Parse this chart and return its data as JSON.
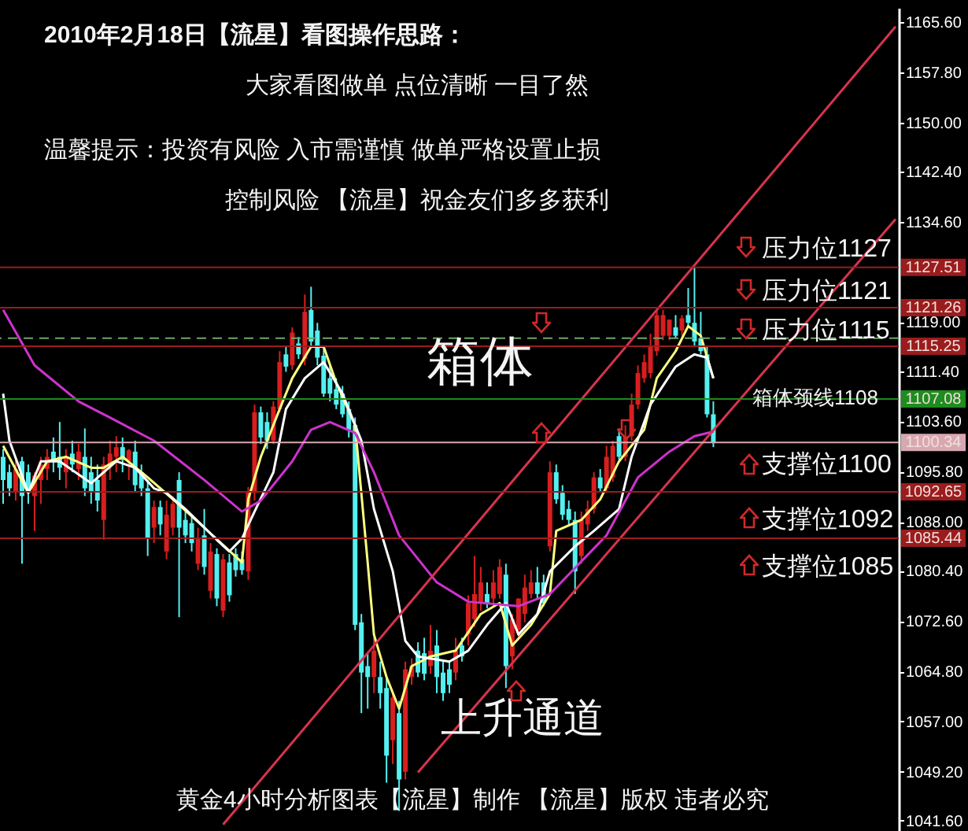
{
  "chart_data": {
    "type": "candlestick",
    "title": "2010年2月18日【流星】看图操作思路：",
    "subtitle": "大家看图做单 点位清晰 一目了然",
    "annotations": [
      "温馨提示：投资有风险 入市需谨慎 做单严格设置止损",
      "控制风险 【流星】祝金友们多多获利",
      "压力位1127",
      "压力位1121",
      "压力位1115",
      "箱体颈线1108",
      "支撑位1100",
      "支撑位1092",
      "支撑位1085",
      "箱体",
      "上升通道",
      "黄金4小时分析图表【流星】制作 【流星】版权 违者必究"
    ],
    "categories": [
      null,
      null,
      null,
      null,
      null,
      null,
      null,
      null,
      null,
      null,
      null,
      null,
      null,
      null,
      null,
      null,
      null,
      null,
      null,
      null,
      null,
      null,
      null,
      null,
      null,
      null,
      null,
      null,
      null,
      null,
      null,
      null,
      null,
      null,
      null,
      null,
      null,
      null,
      null,
      null,
      null,
      null,
      null,
      null,
      null,
      null,
      null,
      null,
      null,
      null,
      null,
      null,
      null,
      null,
      null,
      null,
      null,
      null,
      null,
      null,
      null,
      null,
      null,
      null,
      null,
      null,
      null,
      null,
      null,
      null,
      null,
      null,
      null,
      null,
      null,
      null,
      null,
      null,
      null,
      null,
      null,
      null,
      null,
      null,
      null,
      null,
      null,
      null,
      null,
      null,
      null,
      null,
      null,
      null,
      null,
      null,
      null,
      null,
      null,
      null,
      null,
      null,
      null,
      null,
      null,
      null,
      null,
      null,
      null,
      null,
      null,
      null,
      null,
      null,
      null,
      null,
      null,
      null,
      null,
      null,
      null,
      null,
      null,
      null,
      null,
      null,
      null,
      null,
      null,
      null,
      null,
      null,
      null,
      null,
      null,
      null,
      null,
      null,
      null,
      null,
      null,
      null,
      null
    ],
    "ohlc": [
      [
        1098.1,
        1099.3,
        1090.8,
        1094.5
      ],
      [
        1095.7,
        1096.9,
        1092.0,
        1093.2
      ],
      [
        1092.7,
        1097.6,
        1091.3,
        1096.2
      ],
      [
        1097.4,
        1098.1,
        1081.5,
        1092.0
      ],
      [
        1095.7,
        1096.9,
        1090.8,
        1092.7
      ],
      [
        1092.0,
        1095.7,
        1086.6,
        1095.2
      ],
      [
        1094.5,
        1098.1,
        1090.8,
        1096.9
      ],
      [
        1096.2,
        1099.3,
        1094.5,
        1098.1
      ],
      [
        1098.9,
        1101.1,
        1095.7,
        1097.4
      ],
      [
        1098.1,
        1103.5,
        1094.5,
        1096.4
      ],
      [
        1095.7,
        1099.3,
        1093.2,
        1098.1
      ],
      [
        1098.6,
        1100.6,
        1095.7,
        1096.9
      ],
      [
        1096.2,
        1100.1,
        1094.5,
        1098.9
      ],
      [
        1098.1,
        1102.5,
        1092.0,
        1093.2
      ],
      [
        1095.7,
        1098.1,
        1090.8,
        1092.7
      ],
      [
        1094.5,
        1096.9,
        1089.6,
        1091.3
      ],
      [
        1088.3,
        1098.1,
        1085.2,
        1096.9
      ],
      [
        1096.9,
        1100.6,
        1094.5,
        1098.6
      ],
      [
        1098.1,
        1101.3,
        1095.7,
        1099.6
      ],
      [
        1099.6,
        1101.1,
        1095.7,
        1097.6
      ],
      [
        1097.4,
        1099.3,
        1094.5,
        1099.1
      ],
      [
        1098.9,
        1100.6,
        1092.7,
        1093.7
      ],
      [
        1095.7,
        1096.9,
        1092.0,
        1093.2
      ],
      [
        1093.2,
        1094.5,
        1082.7,
        1085.4
      ],
      [
        1087.1,
        1091.3,
        1084.7,
        1090.3
      ],
      [
        1090.3,
        1091.3,
        1085.9,
        1087.6
      ],
      [
        1083.4,
        1091.3,
        1082.2,
        1089.1
      ],
      [
        1087.1,
        1092.0,
        1085.9,
        1090.8
      ],
      [
        1094.5,
        1095.7,
        1073.2,
        1087.1
      ],
      [
        1088.3,
        1089.6,
        1084.7,
        1085.9
      ],
      [
        1087.8,
        1088.8,
        1083.4,
        1084.7
      ],
      [
        1081.5,
        1087.1,
        1080.5,
        1085.4
      ],
      [
        1085.9,
        1090.0,
        1079.8,
        1081.0
      ],
      [
        1077.3,
        1084.7,
        1076.1,
        1083.4
      ],
      [
        1083.0,
        1083.9,
        1074.9,
        1076.1
      ],
      [
        1074.2,
        1083.0,
        1073.2,
        1082.2
      ],
      [
        1081.7,
        1083.0,
        1075.6,
        1076.6
      ],
      [
        1083.0,
        1083.9,
        1079.5,
        1080.5
      ],
      [
        1082.2,
        1083.4,
        1079.8,
        1080.5
      ],
      [
        1080.3,
        1093.4,
        1079.0,
        1092.7
      ],
      [
        1092.5,
        1106.2,
        1091.3,
        1105.0
      ],
      [
        1105.0,
        1105.9,
        1100.1,
        1101.1
      ],
      [
        1103.5,
        1105.0,
        1099.3,
        1100.6
      ],
      [
        1100.6,
        1106.7,
        1100.1,
        1105.9
      ],
      [
        1105.5,
        1114.5,
        1105.0,
        1112.8
      ],
      [
        1114.0,
        1115.2,
        1111.3,
        1112.1
      ],
      [
        1112.3,
        1118.2,
        1111.6,
        1117.4
      ],
      [
        1115.7,
        1116.7,
        1113.3,
        1114.0
      ],
      [
        1113.3,
        1123.3,
        1112.3,
        1120.6
      ],
      [
        1120.9,
        1124.5,
        1115.2,
        1116.0
      ],
      [
        1117.7,
        1118.9,
        1112.3,
        1113.5
      ],
      [
        1113.8,
        1115.2,
        1107.4,
        1107.9
      ],
      [
        1110.3,
        1112.3,
        1106.7,
        1107.9
      ],
      [
        1108.6,
        1110.3,
        1105.5,
        1106.2
      ],
      [
        1107.9,
        1109.1,
        1104.2,
        1104.7
      ],
      [
        1105.5,
        1106.7,
        1101.1,
        1102.3
      ],
      [
        1103.0,
        1104.2,
        1071.2,
        1072.0
      ],
      [
        1072.4,
        1073.7,
        1058.3,
        1064.6
      ],
      [
        1065.6,
        1067.6,
        1059.0,
        1063.9
      ],
      [
        1063.9,
        1070.0,
        1061.4,
        1068.0
      ],
      [
        1063.9,
        1066.3,
        1059.0,
        1061.4
      ],
      [
        1062.2,
        1063.9,
        1047.5,
        1051.7
      ],
      [
        1054.1,
        1061.4,
        1050.4,
        1060.7
      ],
      [
        1058.3,
        1060.2,
        1043.1,
        1048.0
      ],
      [
        1049.2,
        1066.3,
        1048.0,
        1065.1
      ],
      [
        1063.9,
        1066.8,
        1062.7,
        1065.6
      ],
      [
        1068.0,
        1069.3,
        1063.9,
        1064.6
      ],
      [
        1067.6,
        1070.0,
        1063.4,
        1064.4
      ],
      [
        1065.6,
        1072.0,
        1064.4,
        1068.0
      ],
      [
        1068.8,
        1071.2,
        1061.4,
        1063.9
      ],
      [
        1064.6,
        1066.3,
        1060.2,
        1061.4
      ],
      [
        1065.1,
        1066.3,
        1061.4,
        1062.7
      ],
      [
        1064.6,
        1070.0,
        1063.4,
        1068.0
      ],
      [
        1068.8,
        1070.0,
        1066.3,
        1067.1
      ],
      [
        1070.5,
        1076.6,
        1068.8,
        1075.4
      ],
      [
        1072.9,
        1082.7,
        1071.7,
        1076.8
      ],
      [
        1075.4,
        1081.0,
        1074.2,
        1078.6
      ],
      [
        1076.8,
        1078.6,
        1074.6,
        1075.4
      ],
      [
        1076.1,
        1080.5,
        1075.1,
        1078.6
      ],
      [
        1076.8,
        1082.2,
        1076.1,
        1081.0
      ],
      [
        1079.8,
        1081.5,
        1062.2,
        1065.6
      ],
      [
        1067.1,
        1073.7,
        1065.1,
        1072.9
      ],
      [
        1071.2,
        1076.1,
        1070.0,
        1076.1
      ],
      [
        1073.7,
        1079.8,
        1072.4,
        1077.8
      ],
      [
        1076.8,
        1080.5,
        1076.1,
        1078.6
      ],
      [
        1078.6,
        1081.0,
        1076.1,
        1076.8
      ],
      [
        1078.6,
        1079.8,
        1074.9,
        1075.4
      ],
      [
        1084.2,
        1097.4,
        1083.4,
        1095.7
      ],
      [
        1095.7,
        1096.9,
        1090.8,
        1091.5
      ],
      [
        1092.5,
        1093.7,
        1088.3,
        1089.1
      ],
      [
        1090.0,
        1091.3,
        1087.6,
        1088.3
      ],
      [
        1088.3,
        1089.6,
        1076.8,
        1080.3
      ],
      [
        1082.7,
        1089.6,
        1081.5,
        1088.3
      ],
      [
        1087.6,
        1091.3,
        1086.6,
        1090.0
      ],
      [
        1090.0,
        1095.7,
        1089.3,
        1094.9
      ],
      [
        1094.9,
        1096.2,
        1092.7,
        1093.2
      ],
      [
        1093.2,
        1099.8,
        1092.5,
        1098.1
      ],
      [
        1094.9,
        1100.6,
        1094.2,
        1099.8
      ],
      [
        1101.3,
        1102.5,
        1097.6,
        1098.1
      ],
      [
        1098.1,
        1103.0,
        1097.4,
        1101.3
      ],
      [
        1101.3,
        1107.9,
        1100.6,
        1106.2
      ],
      [
        1106.2,
        1112.3,
        1105.5,
        1111.1
      ],
      [
        1110.3,
        1114.0,
        1109.6,
        1112.8
      ],
      [
        1111.1,
        1117.2,
        1110.3,
        1115.2
      ],
      [
        1114.5,
        1120.9,
        1113.8,
        1120.1
      ],
      [
        1116.9,
        1120.9,
        1116.2,
        1120.1
      ],
      [
        1116.9,
        1119.4,
        1116.2,
        1119.4
      ],
      [
        1118.2,
        1120.1,
        1116.5,
        1116.9
      ],
      [
        1117.7,
        1120.1,
        1116.9,
        1119.6
      ],
      [
        1120.1,
        1124.3,
        1118.4,
        1118.9
      ],
      [
        1118.9,
        1127.5,
        1115.2,
        1116.0
      ],
      [
        1116.5,
        1120.6,
        1114.0,
        1114.5
      ],
      [
        1114.0,
        1115.2,
        1104.2,
        1104.7
      ],
      [
        1104.7,
        1106.7,
        1099.6,
        1100.3
      ],
      null,
      null,
      null,
      null,
      null,
      null,
      null,
      null,
      null,
      null,
      null,
      null,
      null,
      null,
      null,
      null,
      null,
      null,
      null,
      null,
      null,
      null,
      null,
      null,
      null,
      null,
      null,
      null,
      null
    ],
    "series": [
      {
        "type": "line",
        "color": "#ffff80",
        "values": [
          1099.8,
          null,
          null,
          null,
          1092.5,
          null,
          null,
          1097.4,
          null,
          null,
          1098.1,
          null,
          null,
          null,
          1096.4,
          null,
          1096.4,
          null,
          null,
          1098.1,
          null,
          null,
          null,
          1094.9,
          null,
          null,
          null,
          1091.5,
          null,
          null,
          null,
          null,
          1087.1,
          null,
          null,
          null,
          null,
          null,
          1081.7,
          1091.5,
          null,
          1098.1,
          null,
          null,
          1105.5,
          null,
          1110.3,
          null,
          null,
          1115.2,
          null,
          1115.2,
          null,
          1109.6,
          null,
          null,
          1103.0,
          null,
          1081.7,
          1070.5,
          null,
          1063.9,
          null,
          1059.0,
          null,
          1065.6,
          null,
          null,
          1067.1,
          null,
          null,
          null,
          1068.0,
          null,
          null,
          null,
          1073.7,
          null,
          null,
          1075.4,
          null,
          1068.8,
          null,
          null,
          1072.0,
          null,
          null,
          1076.8,
          1086.6,
          null,
          null,
          null,
          1088.3,
          null,
          null,
          1091.5,
          null,
          null,
          1097.4,
          null,
          null,
          null,
          1102.3,
          null,
          1110.3,
          null,
          null,
          1114.5,
          null,
          1118.4,
          null,
          1116.9,
          null,
          1110.3,
          null,
          null,
          null,
          null,
          null,
          null,
          null,
          null,
          null,
          null,
          null,
          null,
          null,
          null,
          null,
          null,
          null,
          null,
          null,
          null,
          null,
          null,
          null,
          null,
          null,
          null,
          null,
          null,
          null
        ]
      },
      {
        "type": "line",
        "color": "#ffffff",
        "values": [
          1107.9,
          1100.6,
          null,
          null,
          1092.5,
          null,
          1097.4,
          null,
          null,
          1097.4,
          null,
          null,
          null,
          null,
          1094.0,
          null,
          null,
          null,
          1097.4,
          null,
          null,
          1096.4,
          null,
          null,
          1093.2,
          null,
          1092.5,
          null,
          null,
          1090.0,
          null,
          null,
          null,
          null,
          1085.2,
          null,
          1083.4,
          null,
          1085.4,
          null,
          1089.6,
          null,
          null,
          1095.7,
          null,
          1105.5,
          null,
          null,
          1110.3,
          null,
          null,
          1112.8,
          null,
          null,
          1107.9,
          null,
          null,
          1100.6,
          null,
          1090.0,
          null,
          null,
          1080.3,
          null,
          1069.5,
          null,
          1067.1,
          null,
          null,
          null,
          null,
          1066.3,
          null,
          null,
          1068.0,
          null,
          null,
          1072.0,
          null,
          null,
          1075.4,
          null,
          1070.5,
          null,
          null,
          1073.7,
          null,
          1080.3,
          null,
          null,
          null,
          1084.2,
          null,
          null,
          1086.6,
          null,
          null,
          null,
          1090.0,
          null,
          1098.1,
          null,
          null,
          1106.2,
          null,
          null,
          null,
          1112.1,
          null,
          null,
          1114.0,
          null,
          1113.5,
          1110.3,
          null,
          null,
          null,
          null,
          null,
          null,
          null,
          null,
          null,
          null,
          null,
          null,
          null,
          null,
          null,
          null,
          null,
          null,
          null,
          null,
          null,
          null,
          null,
          null,
          null,
          null,
          null,
          null,
          null
        ]
      },
      {
        "type": "line",
        "color": "#cc33cc",
        "values": [
          1120.9,
          null,
          null,
          null,
          null,
          1112.3,
          null,
          null,
          null,
          null,
          null,
          null,
          1106.7,
          null,
          null,
          null,
          null,
          1104.2,
          null,
          null,
          null,
          null,
          null,
          null,
          1100.6,
          null,
          null,
          null,
          null,
          null,
          null,
          null,
          1094.5,
          null,
          null,
          null,
          null,
          null,
          1089.6,
          null,
          null,
          1091.3,
          null,
          null,
          null,
          null,
          1097.4,
          null,
          null,
          1102.3,
          null,
          null,
          1103.5,
          null,
          null,
          null,
          1101.8,
          null,
          null,
          1095.7,
          null,
          null,
          null,
          1085.9,
          null,
          null,
          null,
          null,
          null,
          1078.6,
          null,
          null,
          null,
          null,
          1075.6,
          null,
          null,
          null,
          null,
          null,
          null,
          null,
          1074.9,
          null,
          null,
          null,
          null,
          1076.8,
          null,
          null,
          null,
          null,
          null,
          null,
          null,
          null,
          1085.9,
          null,
          null,
          null,
          null,
          1094.9,
          null,
          null,
          null,
          null,
          1098.9,
          null,
          null,
          null,
          1101.3,
          null,
          null,
          1102.0,
          null,
          null,
          null,
          null,
          null,
          null,
          null,
          null,
          null,
          null,
          null,
          null,
          null,
          null,
          null,
          null,
          null,
          null,
          null,
          null,
          null,
          null,
          null,
          null,
          null,
          null,
          null,
          null,
          null
        ]
      },
      {
        "type": "line",
        "color": "#d8344e",
        "values": [
          null,
          null,
          null,
          null,
          null,
          null,
          null,
          null,
          null,
          null,
          null,
          null,
          null,
          null,
          null,
          null,
          null,
          null,
          null,
          null,
          null,
          null,
          null,
          null,
          null,
          null,
          null,
          null,
          null,
          null,
          null,
          null,
          null,
          null,
          null,
          1041.0,
          null,
          null,
          null,
          null,
          null,
          null,
          null,
          null,
          null,
          null,
          null,
          null,
          null,
          null,
          null,
          null,
          null,
          null,
          null,
          null,
          null,
          null,
          null,
          null,
          null,
          null,
          null,
          null,
          null,
          null,
          null,
          null,
          null,
          null,
          null,
          null,
          null,
          null,
          null,
          null,
          null,
          null,
          null,
          null,
          null,
          null,
          null,
          null,
          null,
          null,
          null,
          null,
          null,
          null,
          null,
          null,
          null,
          null,
          null,
          null,
          null,
          null,
          null,
          null,
          null,
          null,
          null,
          null,
          null,
          null,
          null,
          null,
          null,
          null,
          null,
          null,
          null,
          null,
          null,
          null,
          null,
          null,
          null,
          null,
          null,
          null,
          null,
          null,
          null,
          null,
          null,
          null,
          null,
          null,
          null,
          null,
          null,
          null,
          null,
          null,
          null,
          null,
          null,
          null,
          null,
          null,
          1164.9
        ]
      },
      {
        "type": "line",
        "color": "#d8344e",
        "values": [
          null,
          null,
          null,
          null,
          null,
          null,
          null,
          null,
          null,
          null,
          null,
          null,
          null,
          null,
          null,
          null,
          null,
          null,
          null,
          null,
          null,
          null,
          null,
          null,
          null,
          null,
          null,
          null,
          null,
          null,
          null,
          null,
          null,
          null,
          null,
          null,
          null,
          null,
          null,
          null,
          null,
          null,
          null,
          null,
          null,
          null,
          null,
          null,
          null,
          null,
          null,
          null,
          null,
          null,
          null,
          null,
          null,
          null,
          null,
          null,
          null,
          null,
          null,
          null,
          null,
          null,
          1049.1,
          null,
          null,
          null,
          null,
          null,
          null,
          null,
          null,
          null,
          null,
          null,
          null,
          null,
          null,
          null,
          null,
          null,
          null,
          null,
          null,
          null,
          null,
          null,
          null,
          null,
          null,
          null,
          null,
          null,
          null,
          null,
          null,
          null,
          null,
          null,
          null,
          null,
          null,
          null,
          null,
          null,
          null,
          null,
          null,
          null,
          null,
          null,
          null,
          null,
          null,
          null,
          null,
          null,
          null,
          null,
          null,
          null,
          null,
          null,
          null,
          null,
          null,
          null,
          null,
          null,
          null,
          null,
          null,
          null,
          null,
          null,
          null,
          null,
          null,
          null,
          1135.0
        ]
      }
    ],
    "ref_lines": [
      {
        "axis": "y",
        "value": 1127.51,
        "label": "1127.51",
        "color": "#9a1c1c"
      },
      {
        "axis": "y",
        "value": 1121.26,
        "label": "1121.26",
        "color": "#9a1c1c"
      },
      {
        "axis": "y",
        "value": 1116.5,
        "color": "#6aa86a",
        "line_style": "dashed"
      },
      {
        "axis": "y",
        "value": 1115.25,
        "label": "1115.25",
        "color": "#9a1c1c"
      },
      {
        "axis": "y",
        "value": 1107.08,
        "label": "1107.08",
        "color": "#1e8c1e"
      },
      {
        "axis": "y",
        "value": 1100.34,
        "label": "1100.34",
        "color": "#d8a8b0"
      },
      {
        "axis": "y",
        "value": 1092.65,
        "label": "1092.65",
        "color": "#9a1c1c"
      },
      {
        "axis": "y",
        "value": 1085.44,
        "label": "1085.44",
        "color": "#9a1c1c"
      }
    ],
    "ylim": [
      1040.0,
      1167.8
    ],
    "yticks": [
      {
        "value": 1165.6,
        "label": "1165.60"
      },
      {
        "value": 1157.8,
        "label": "1157.80"
      },
      {
        "value": 1150,
        "label": "1150.00"
      },
      {
        "value": 1142.4,
        "label": "1142.40"
      },
      {
        "value": 1134.6,
        "label": "1134.60"
      },
      {
        "value": 1119,
        "label": "1119.00"
      },
      {
        "value": 1111.4,
        "label": "1111.40"
      },
      {
        "value": 1103.6,
        "label": "1103.60"
      },
      {
        "value": 1095.8,
        "label": "1095.80"
      },
      {
        "value": 1088,
        "label": "1088.00"
      },
      {
        "value": 1080.4,
        "label": "1080.40"
      },
      {
        "value": 1072.6,
        "label": "1072.60"
      },
      {
        "value": 1064.8,
        "label": "1064.80"
      },
      {
        "value": 1057,
        "label": "1057.00"
      },
      {
        "value": 1049.2,
        "label": "1049.20"
      },
      {
        "value": 1041.6,
        "label": "1041.60"
      }
    ],
    "tick_labels": "y"
  }
}
